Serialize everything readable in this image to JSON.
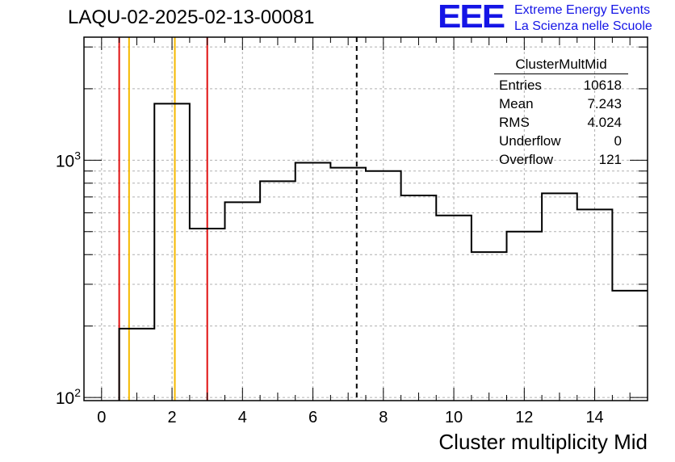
{
  "header": {
    "title": "LAQU-02-2025-02-13-00081",
    "logo": "EEE",
    "logo_line1": "Extreme Energy Events",
    "logo_line2": "La Scienza nelle Scuole"
  },
  "stats_box": {
    "name": "ClusterMultMid",
    "rows": [
      {
        "label": "Entries",
        "value": "10618"
      },
      {
        "label": "Mean",
        "value": "7.243"
      },
      {
        "label": "RMS",
        "value": "4.024"
      },
      {
        "label": "Underflow",
        "value": "0"
      },
      {
        "label": "Overflow",
        "value": "121"
      }
    ]
  },
  "colors": {
    "red": "#e01010",
    "orange": "#f5b800",
    "logo": "#1515e6"
  },
  "chart_data": {
    "type": "histogram",
    "title": "LAQU-02-2025-02-13-00081",
    "xlabel": "Cluster multiplicity Mid",
    "ylabel": "",
    "y_scale": "log",
    "xlim": [
      -0.5,
      15.5
    ],
    "ylim": [
      97,
      3300
    ],
    "x_ticks": [
      0,
      2,
      4,
      6,
      8,
      10,
      12,
      14
    ],
    "y_ticks": [
      {
        "value": 100,
        "label": "10",
        "exp": "2"
      },
      {
        "value": 1000,
        "label": "10",
        "exp": "3"
      }
    ],
    "grid": true,
    "bins": [
      {
        "low": 0.5,
        "high": 1.5,
        "count": 195
      },
      {
        "low": 1.5,
        "high": 2.5,
        "count": 1730
      },
      {
        "low": 2.5,
        "high": 3.5,
        "count": 515
      },
      {
        "low": 3.5,
        "high": 4.5,
        "count": 665
      },
      {
        "low": 4.5,
        "high": 5.5,
        "count": 815
      },
      {
        "low": 5.5,
        "high": 6.5,
        "count": 975
      },
      {
        "low": 6.5,
        "high": 7.5,
        "count": 930
      },
      {
        "low": 7.5,
        "high": 8.5,
        "count": 900
      },
      {
        "low": 8.5,
        "high": 9.5,
        "count": 710
      },
      {
        "low": 9.5,
        "high": 10.5,
        "count": 585
      },
      {
        "low": 10.5,
        "high": 11.5,
        "count": 410
      },
      {
        "low": 11.5,
        "high": 12.5,
        "count": 500
      },
      {
        "low": 12.5,
        "high": 13.5,
        "count": 725
      },
      {
        "low": 13.5,
        "high": 14.5,
        "count": 620
      },
      {
        "low": 14.5,
        "high": 15.5,
        "count": 282
      }
    ],
    "markers": [
      {
        "x": 0.5,
        "color": "red",
        "style": "solid"
      },
      {
        "x": 0.78,
        "color": "orange",
        "style": "solid"
      },
      {
        "x": 2.08,
        "color": "orange",
        "style": "solid"
      },
      {
        "x": 3.0,
        "color": "red",
        "style": "solid"
      },
      {
        "x": 7.243,
        "color": "black",
        "style": "dashed"
      }
    ]
  }
}
